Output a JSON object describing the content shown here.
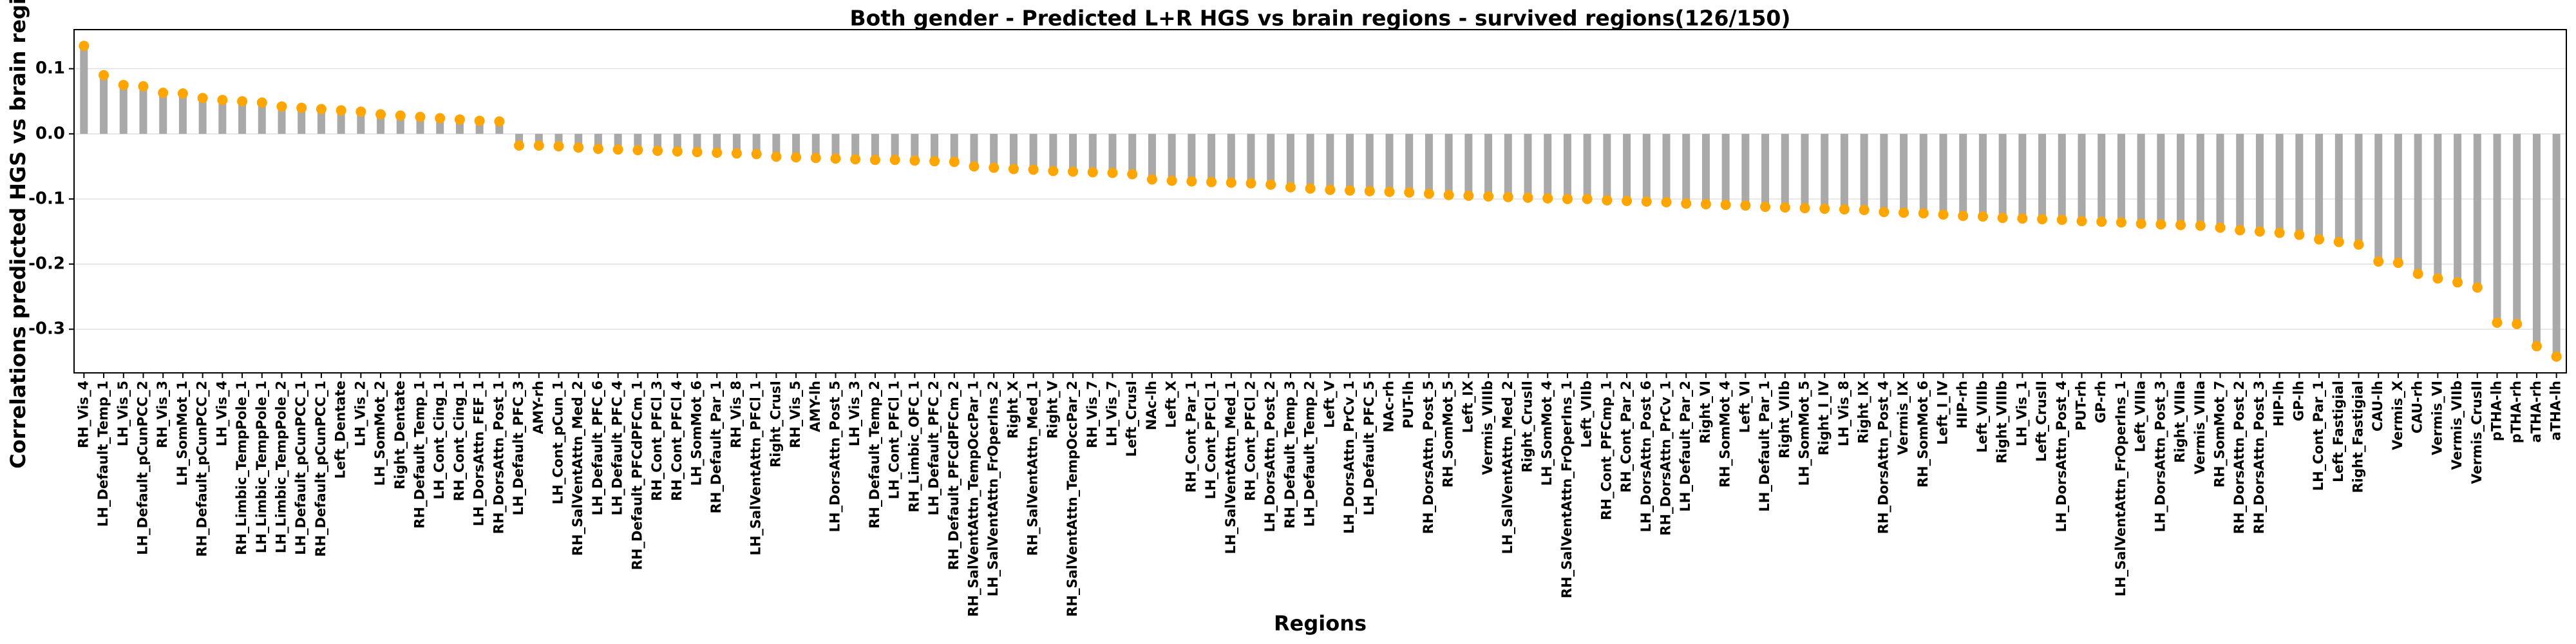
{
  "chart_data": {
    "type": "lollipop",
    "title": "Both gender - Predicted L+R HGS vs brain regions - survived regions(126/150)",
    "xlabel": "Regions",
    "ylabel": "Correlations predicted HGS vs brain regions",
    "categories": [
      "RH_Vis_4",
      "LH_Default_Temp_1",
      "LH_Vis_5",
      "LH_Default_pCunPCC_2",
      "RH_Vis_3",
      "LH_SomMot_1",
      "RH_Default_pCunPCC_2",
      "LH_Vis_4",
      "RH_Limbic_TempPole_1",
      "LH_Limbic_TempPole_1",
      "LH_Limbic_TempPole_2",
      "LH_Default_pCunPCC_1",
      "RH_Default_pCunPCC_1",
      "Left_Dentate",
      "LH_Vis_2",
      "LH_SomMot_2",
      "Right_Dentate",
      "RH_Default_Temp_1",
      "LH_Cont_Cing_1",
      "RH_Cont_Cing_1",
      "LH_DorsAttn_FEF_1",
      "RH_DorsAttn_Post_1",
      "LH_Default_PFC_3",
      "AMY-rh",
      "LH_Cont_pCun_1",
      "RH_SalVentAttn_Med_2",
      "LH_Default_PFC_6",
      "LH_Default_PFC_4",
      "RH_Default_PFCdPFCm_1",
      "RH_Cont_PFCl_3",
      "RH_Cont_PFCl_4",
      "LH_SomMot_6",
      "RH_Default_Par_1",
      "RH_Vis_8",
      "LH_SalVentAttn_PFCl_1",
      "Right_CrusI",
      "RH_Vis_5",
      "AMY-lh",
      "LH_DorsAttn_Post_5",
      "LH_Vis_3",
      "RH_Default_Temp_2",
      "LH_Cont_PFCl_1",
      "RH_Limbic_OFC_1",
      "LH_Default_PFC_2",
      "RH_Default_PFCdPFCm_2",
      "RH_SalVentAttn_TempOccPar_1",
      "LH_SalVentAttn_FrOperIns_2",
      "Right_X",
      "RH_SalVentAttn_Med_1",
      "Right_V",
      "RH_SalVentAttn_TempOccPar_2",
      "RH_Vis_7",
      "LH_Vis_7",
      "Left_CrusI",
      "NAc-lh",
      "Left_X",
      "RH_Cont_Par_1",
      "LH_Cont_PFCl_1",
      "LH_SalVentAttn_Med_1",
      "RH_Cont_PFCl_2",
      "LH_DorsAttn_Post_2",
      "RH_Default_Temp_3",
      "LH_Default_Temp_2",
      "Left_V",
      "LH_DorsAttn_PrCv_1",
      "LH_Default_PFC_5",
      "NAc-rh",
      "PUT-lh",
      "RH_DorsAttn_Post_5",
      "RH_SomMot_5",
      "Left_IX",
      "Vermis_VIIIb",
      "LH_SalVentAttn_Med_2",
      "Right_CrusII",
      "LH_SomMot_4",
      "RH_SalVentAttn_FrOperIns_1",
      "Left_VIIb",
      "RH_Cont_PFCmp_1",
      "RH_Cont_Par_2",
      "LH_DorsAttn_Post_6",
      "RH_DorsAttn_PrCv_1",
      "LH_Default_Par_2",
      "Right_VI",
      "RH_SomMot_4",
      "Left_VI",
      "LH_Default_Par_1",
      "Right_VIIb",
      "LH_SomMot_5",
      "Right_I_IV",
      "LH_Vis_8",
      "Right_IX",
      "RH_DorsAttn_Post_4",
      "Vermis_IX",
      "RH_SomMot_6",
      "Left_I_IV",
      "HIP-rh",
      "Left_VIIIb",
      "Right_VIIIb",
      "LH_Vis_1",
      "Left_CrusII",
      "LH_DorsAttn_Post_4",
      "PUT-rh",
      "GP-rh",
      "LH_SalVentAttn_FrOperIns_1",
      "Left_VIIIa",
      "LH_DorsAttn_Post_3",
      "Right_VIIIa",
      "Vermis_VIIIa",
      "RH_SomMot_7",
      "RH_DorsAttn_Post_2",
      "RH_DorsAttn_Post_3",
      "HIP-lh",
      "GP-lh",
      "LH_Cont_Par_1",
      "Left_Fastigial",
      "Right_Fastigial",
      "CAU-lh",
      "Vermis_X",
      "CAU-rh",
      "Vermis_VI",
      "Vermis_VIIb",
      "Vermis_CrusII",
      "pTHA-lh",
      "pTHA-rh",
      "aTHA-rh",
      "aTHA-lh"
    ],
    "values": [
      0.135,
      0.09,
      0.075,
      0.073,
      0.063,
      0.062,
      0.055,
      0.052,
      0.05,
      0.048,
      0.042,
      0.04,
      0.038,
      0.036,
      0.034,
      0.03,
      0.028,
      0.026,
      0.024,
      0.022,
      0.02,
      0.019,
      -0.018,
      -0.018,
      -0.019,
      -0.021,
      -0.023,
      -0.024,
      -0.025,
      -0.026,
      -0.027,
      -0.028,
      -0.029,
      -0.03,
      -0.031,
      -0.035,
      -0.036,
      -0.037,
      -0.038,
      -0.039,
      -0.04,
      -0.04,
      -0.041,
      -0.042,
      -0.043,
      -0.05,
      -0.052,
      -0.054,
      -0.055,
      -0.057,
      -0.058,
      -0.059,
      -0.06,
      -0.062,
      -0.07,
      -0.072,
      -0.073,
      -0.074,
      -0.075,
      -0.076,
      -0.078,
      -0.082,
      -0.084,
      -0.086,
      -0.087,
      -0.088,
      -0.089,
      -0.09,
      -0.092,
      -0.094,
      -0.095,
      -0.096,
      -0.097,
      -0.098,
      -0.099,
      -0.1,
      -0.1,
      -0.102,
      -0.103,
      -0.104,
      -0.105,
      -0.107,
      -0.108,
      -0.109,
      -0.11,
      -0.112,
      -0.113,
      -0.114,
      -0.115,
      -0.116,
      -0.117,
      -0.12,
      -0.121,
      -0.122,
      -0.124,
      -0.126,
      -0.127,
      -0.129,
      -0.13,
      -0.131,
      -0.132,
      -0.134,
      -0.135,
      -0.136,
      -0.138,
      -0.139,
      -0.14,
      -0.141,
      -0.144,
      -0.148,
      -0.15,
      -0.152,
      -0.155,
      -0.162,
      -0.166,
      -0.17,
      -0.196,
      -0.198,
      -0.215,
      -0.222,
      -0.228,
      -0.236,
      -0.29,
      -0.292,
      -0.326,
      -0.342
    ],
    "bar_color": "#a9a9a9",
    "color": "#ffa500",
    "ylim": [
      -0.367,
      0.16
    ],
    "yticks": [
      -0.3,
      -0.2,
      -0.1,
      {
        "value": 0,
        "label": "0.0"
      },
      0.1
    ],
    "grid": true
  }
}
